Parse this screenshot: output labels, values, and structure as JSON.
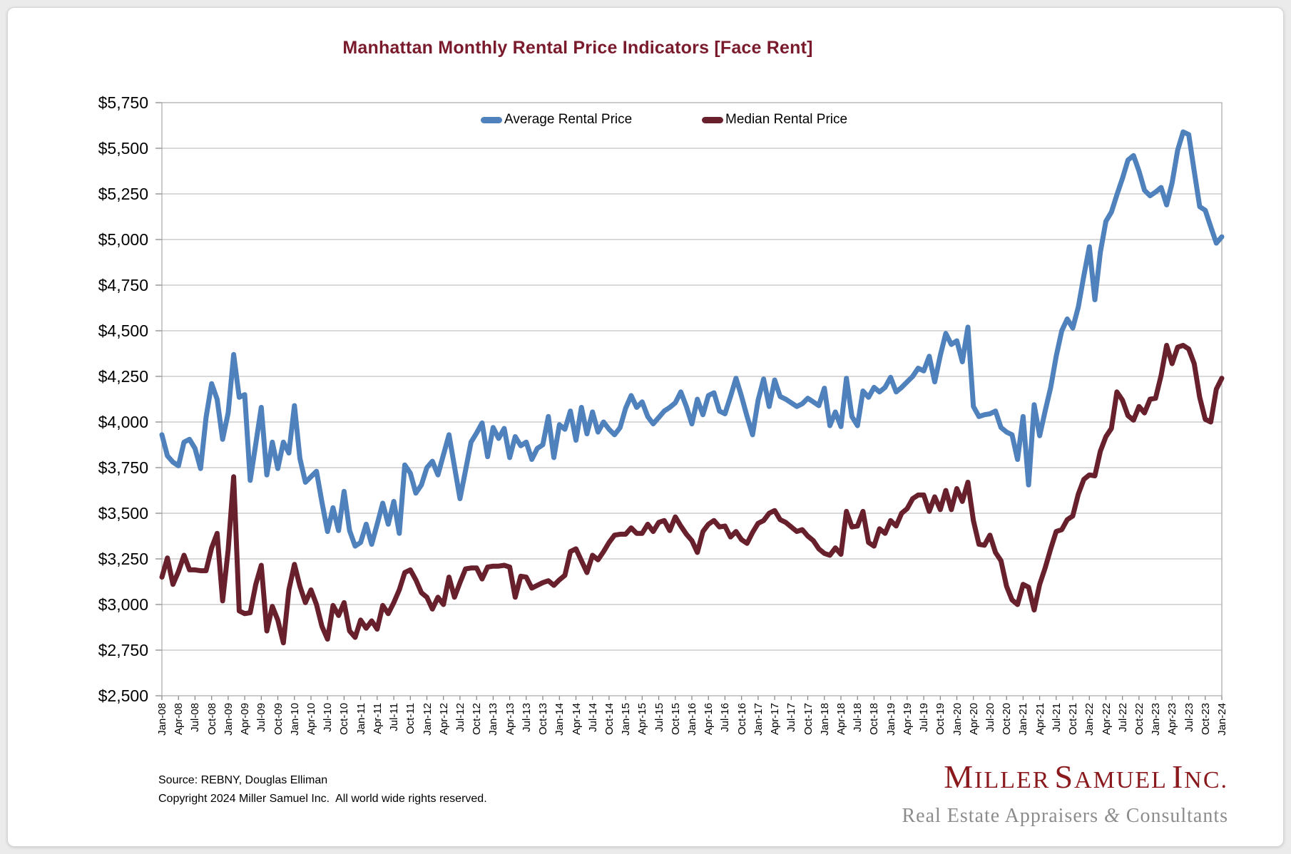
{
  "title": "Manhattan Monthly Rental Price Indicators [Face Rent]",
  "colors": {
    "title": "#7a1b2d",
    "average_line": "#4f81bd",
    "median_line": "#67202c",
    "gridline": "#b3b3b3",
    "axis": "#7f7f7f",
    "logo_red": "#8a191d",
    "tagline_gray": "#8c8c8c"
  },
  "footer": {
    "source": "Source: REBNY, Douglas Elliman",
    "copyright": "Copyright 2024 Miller Samuel Inc.  All world wide rights reserved."
  },
  "logo": {
    "name": "Miller Samuel Inc.",
    "tagline": "Real Estate Appraisers & Consultants"
  },
  "chart_data": {
    "type": "line",
    "title": "Manhattan Monthly Rental Price Indicators [Face Rent]",
    "legend_position": "top",
    "grid": true,
    "ylim": [
      2500,
      5750
    ],
    "ytick_step": 250,
    "x_tick_every": 3,
    "y_ticks": [
      {
        "value": 2500,
        "label": "$2,500"
      },
      {
        "value": 2750,
        "label": "$2,750"
      },
      {
        "value": 3000,
        "label": "$3,000"
      },
      {
        "value": 3250,
        "label": "$3,250"
      },
      {
        "value": 3500,
        "label": "$3,500"
      },
      {
        "value": 3750,
        "label": "$3,750"
      },
      {
        "value": 4000,
        "label": "$4,000"
      },
      {
        "value": 4250,
        "label": "$4,250"
      },
      {
        "value": 4500,
        "label": "$4,500"
      },
      {
        "value": 4750,
        "label": "$4,750"
      },
      {
        "value": 5000,
        "label": "$5,000"
      },
      {
        "value": 5250,
        "label": "$5,250"
      },
      {
        "value": 5500,
        "label": "$5,500"
      },
      {
        "value": 5750,
        "label": "$5,750"
      }
    ],
    "x": [
      "Jan-08",
      "Feb-08",
      "Mar-08",
      "Apr-08",
      "May-08",
      "Jun-08",
      "Jul-08",
      "Aug-08",
      "Sep-08",
      "Oct-08",
      "Nov-08",
      "Dec-08",
      "Jan-09",
      "Feb-09",
      "Mar-09",
      "Apr-09",
      "May-09",
      "Jun-09",
      "Jul-09",
      "Aug-09",
      "Sep-09",
      "Oct-09",
      "Nov-09",
      "Dec-09",
      "Jan-10",
      "Feb-10",
      "Mar-10",
      "Apr-10",
      "May-10",
      "Jun-10",
      "Jul-10",
      "Aug-10",
      "Sep-10",
      "Oct-10",
      "Nov-10",
      "Dec-10",
      "Jan-11",
      "Feb-11",
      "Mar-11",
      "Apr-11",
      "May-11",
      "Jun-11",
      "Jul-11",
      "Aug-11",
      "Sep-11",
      "Oct-11",
      "Nov-11",
      "Dec-11",
      "Jan-12",
      "Feb-12",
      "Mar-12",
      "Apr-12",
      "May-12",
      "Jun-12",
      "Jul-12",
      "Aug-12",
      "Sep-12",
      "Oct-12",
      "Nov-12",
      "Dec-12",
      "Jan-13",
      "Feb-13",
      "Mar-13",
      "Apr-13",
      "May-13",
      "Jun-13",
      "Jul-13",
      "Aug-13",
      "Sep-13",
      "Oct-13",
      "Nov-13",
      "Dec-13",
      "Jan-14",
      "Feb-14",
      "Mar-14",
      "Apr-14",
      "May-14",
      "Jun-14",
      "Jul-14",
      "Aug-14",
      "Sep-14",
      "Oct-14",
      "Nov-14",
      "Dec-14",
      "Jan-15",
      "Feb-15",
      "Mar-15",
      "Apr-15",
      "May-15",
      "Jun-15",
      "Jul-15",
      "Aug-15",
      "Sep-15",
      "Oct-15",
      "Nov-15",
      "Dec-15",
      "Jan-16",
      "Feb-16",
      "Mar-16",
      "Apr-16",
      "May-16",
      "Jun-16",
      "Jul-16",
      "Aug-16",
      "Sep-16",
      "Oct-16",
      "Nov-16",
      "Dec-16",
      "Jan-17",
      "Feb-17",
      "Mar-17",
      "Apr-17",
      "May-17",
      "Jun-17",
      "Jul-17",
      "Aug-17",
      "Sep-17",
      "Oct-17",
      "Nov-17",
      "Dec-17",
      "Jan-18",
      "Feb-18",
      "Mar-18",
      "Apr-18",
      "May-18",
      "Jun-18",
      "Jul-18",
      "Aug-18",
      "Sep-18",
      "Oct-18",
      "Nov-18",
      "Dec-18",
      "Jan-19",
      "Feb-19",
      "Mar-19",
      "Apr-19",
      "May-19",
      "Jun-19",
      "Jul-19",
      "Aug-19",
      "Sep-19",
      "Oct-19",
      "Nov-19",
      "Dec-19",
      "Jan-20",
      "Feb-20",
      "Mar-20",
      "Apr-20",
      "May-20",
      "Jun-20",
      "Jul-20",
      "Aug-20",
      "Sep-20",
      "Oct-20",
      "Nov-20",
      "Dec-20",
      "Jan-21",
      "Feb-21",
      "Mar-21",
      "Apr-21",
      "May-21",
      "Jun-21",
      "Jul-21",
      "Aug-21",
      "Sep-21",
      "Oct-21",
      "Nov-21",
      "Dec-21",
      "Jan-22",
      "Feb-22",
      "Mar-22",
      "Apr-22",
      "May-22",
      "Jun-22",
      "Jul-22",
      "Aug-22",
      "Sep-22",
      "Oct-22",
      "Nov-22",
      "Dec-22",
      "Jan-23",
      "Feb-23",
      "Mar-23",
      "Apr-23",
      "May-23",
      "Jun-23",
      "Jul-23",
      "Aug-23",
      "Sep-23",
      "Oct-23",
      "Nov-23",
      "Dec-23",
      "Jan-24"
    ],
    "series": [
      {
        "name": "Average Rental Price",
        "color": "#4f81bd",
        "values": [
          3930,
          3815,
          3780,
          3760,
          3890,
          3905,
          3855,
          3745,
          4025,
          4210,
          4125,
          3905,
          4050,
          4370,
          4135,
          4150,
          3680,
          3880,
          4080,
          3710,
          3890,
          3745,
          3890,
          3830,
          4090,
          3800,
          3670,
          3700,
          3730,
          3560,
          3400,
          3530,
          3405,
          3620,
          3405,
          3320,
          3340,
          3440,
          3330,
          3440,
          3555,
          3440,
          3565,
          3390,
          3765,
          3720,
          3610,
          3655,
          3750,
          3785,
          3710,
          3820,
          3930,
          3755,
          3580,
          3735,
          3890,
          3940,
          3995,
          3810,
          3970,
          3910,
          3965,
          3805,
          3920,
          3870,
          3890,
          3795,
          3855,
          3875,
          4030,
          3805,
          3985,
          3960,
          4060,
          3900,
          4080,
          3935,
          4055,
          3945,
          4000,
          3960,
          3930,
          3970,
          4075,
          4145,
          4080,
          4110,
          4030,
          3990,
          4025,
          4060,
          4080,
          4105,
          4165,
          4085,
          3990,
          4125,
          4040,
          4145,
          4160,
          4060,
          4045,
          4140,
          4240,
          4140,
          4030,
          3930,
          4120,
          4235,
          4085,
          4230,
          4140,
          4125,
          4105,
          4085,
          4100,
          4130,
          4110,
          4090,
          4185,
          3980,
          4055,
          3975,
          4240,
          4030,
          3980,
          4170,
          4135,
          4190,
          4165,
          4190,
          4245,
          4165,
          4190,
          4220,
          4250,
          4295,
          4280,
          4360,
          4220,
          4365,
          4485,
          4425,
          4445,
          4330,
          4520,
          4085,
          4030,
          4040,
          4045,
          4060,
          3970,
          3945,
          3930,
          3795,
          4030,
          3655,
          4095,
          3925,
          4060,
          4190,
          4360,
          4500,
          4565,
          4515,
          4630,
          4800,
          4960,
          4670,
          4930,
          5100,
          5150,
          5245,
          5335,
          5435,
          5460,
          5375,
          5270,
          5240,
          5260,
          5285,
          5190,
          5310,
          5490,
          5590,
          5575,
          5375,
          5180,
          5160,
          5070,
          4980,
          5015
        ]
      },
      {
        "name": "Median Rental Price",
        "color": "#67202c",
        "values": [
          3150,
          3255,
          3110,
          3180,
          3270,
          3190,
          3190,
          3185,
          3185,
          3310,
          3390,
          3020,
          3300,
          3700,
          2965,
          2950,
          2955,
          3110,
          3215,
          2855,
          2990,
          2915,
          2790,
          3080,
          3220,
          3100,
          3010,
          3080,
          3000,
          2880,
          2810,
          2995,
          2940,
          3010,
          2855,
          2820,
          2915,
          2870,
          2910,
          2865,
          2995,
          2950,
          3010,
          3080,
          3175,
          3190,
          3135,
          3065,
          3040,
          2975,
          3040,
          3000,
          3150,
          3040,
          3120,
          3195,
          3200,
          3200,
          3140,
          3205,
          3210,
          3210,
          3215,
          3205,
          3040,
          3155,
          3150,
          3090,
          3105,
          3120,
          3130,
          3105,
          3135,
          3160,
          3290,
          3305,
          3240,
          3175,
          3270,
          3245,
          3290,
          3340,
          3380,
          3385,
          3385,
          3420,
          3390,
          3390,
          3440,
          3400,
          3450,
          3460,
          3405,
          3480,
          3430,
          3385,
          3350,
          3285,
          3400,
          3440,
          3460,
          3425,
          3430,
          3370,
          3400,
          3355,
          3335,
          3395,
          3445,
          3460,
          3500,
          3515,
          3465,
          3450,
          3425,
          3400,
          3410,
          3375,
          3350,
          3305,
          3280,
          3270,
          3310,
          3275,
          3510,
          3425,
          3430,
          3510,
          3340,
          3320,
          3415,
          3390,
          3460,
          3430,
          3500,
          3525,
          3580,
          3600,
          3600,
          3510,
          3590,
          3520,
          3625,
          3520,
          3635,
          3565,
          3670,
          3460,
          3330,
          3325,
          3380,
          3285,
          3240,
          3100,
          3025,
          3000,
          3110,
          3095,
          2970,
          3110,
          3200,
          3305,
          3400,
          3410,
          3465,
          3485,
          3605,
          3685,
          3710,
          3705,
          3840,
          3920,
          3965,
          4165,
          4120,
          4035,
          4010,
          4085,
          4050,
          4125,
          4130,
          4255,
          4420,
          4320,
          4410,
          4420,
          4400,
          4320,
          4135,
          4015,
          4000,
          4180,
          4240
        ]
      }
    ]
  }
}
